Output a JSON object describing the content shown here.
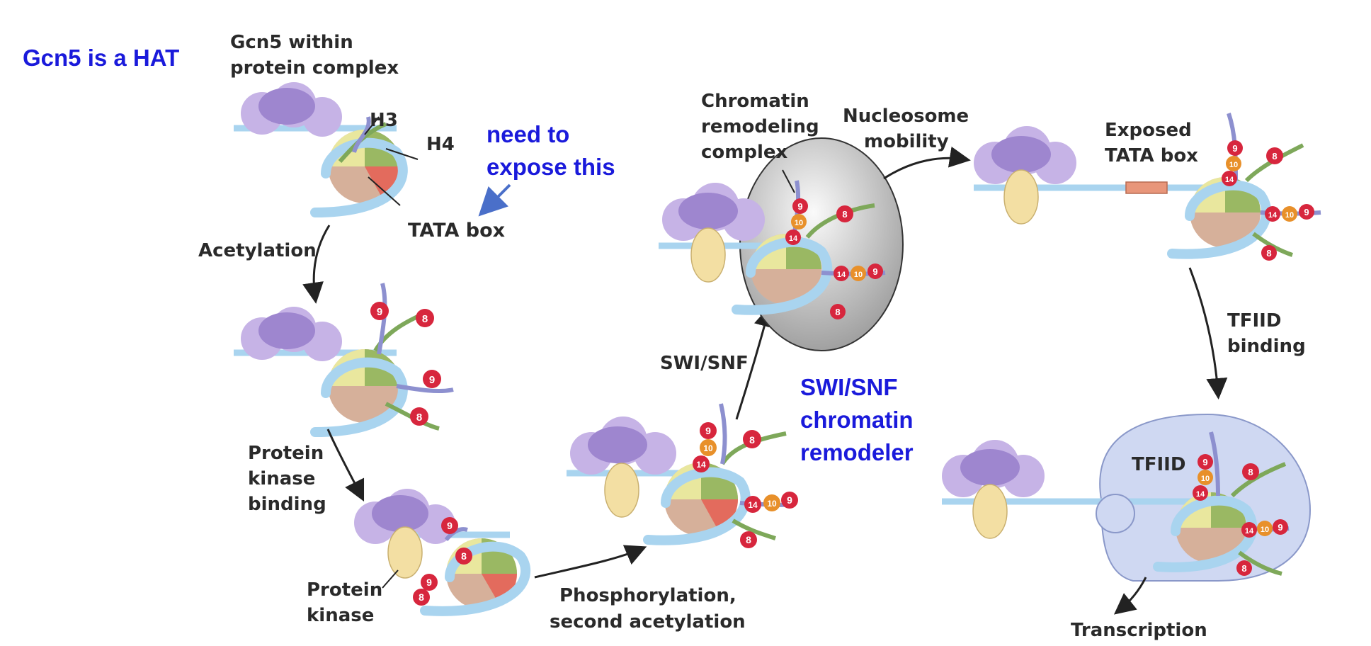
{
  "notes": {
    "gcn5_hat": "Gcn5 is a HAT",
    "expose_line1": "need to",
    "expose_line2": "expose this",
    "swisnf_line1": "SWI/SNF",
    "swisnf_line2": "chromatin",
    "swisnf_line3": "remodeler"
  },
  "labels": {
    "gcn5_complex_line1": "Gcn5 within",
    "gcn5_complex_line2": "protein complex",
    "h3": "H3",
    "h4": "H4",
    "tata_box": "TATA box",
    "acetylation": "Acetylation",
    "pk_binding_line1": "Protein",
    "pk_binding_line2": "kinase",
    "pk_binding_line3": "binding",
    "protein_kinase_line1": "Protein",
    "protein_kinase_line2": "kinase",
    "phos_line1": "Phosphorylation,",
    "phos_line2": "second acetylation",
    "swisnf_arrow": "SWI/SNF",
    "crc_line1": "Chromatin",
    "crc_line2": "remodeling",
    "crc_line3": "complex",
    "mobility_line1": "Nucleosome",
    "mobility_line2": "mobility",
    "exposed_line1": "Exposed",
    "exposed_line2": "TATA box",
    "tfiid_binding_line1": "TFIID",
    "tfiid_binding_line2": "binding",
    "tfiid": "TFIID",
    "transcription": "Transcription"
  },
  "marks": {
    "k8": "8",
    "k9": "9",
    "k10": "10",
    "k14": "14"
  },
  "colors": {
    "note_blue": "#1a1adb",
    "dna": "#a9d4ef",
    "complex": "#b39ddb",
    "kinase": "#f3dfa3",
    "mark_red": "#d7263d",
    "mark_orange": "#e8902a",
    "tfiid": "#cfd8f2"
  }
}
